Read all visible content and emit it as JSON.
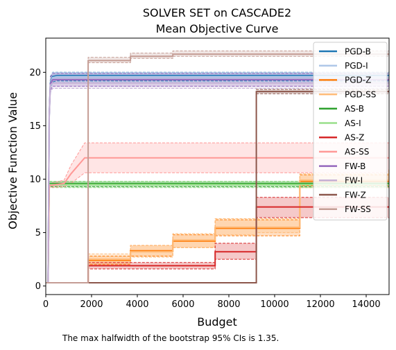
{
  "chart_data": {
    "type": "line",
    "title": "SOLVER SET on CASCADE2",
    "subtitle": "Mean Objective Curve",
    "xlabel": "Budget",
    "ylabel": "Objective Function Value",
    "xlim": [
      0,
      15000
    ],
    "ylim": [
      -0.8,
      23.2
    ],
    "xticks": [
      0,
      2000,
      4000,
      6000,
      8000,
      10000,
      12000,
      14000
    ],
    "yticks": [
      0,
      5,
      10,
      15,
      20
    ],
    "grid": false,
    "legend_position": "top-right",
    "footnote": "The max halfwidth of the bootstrap 95% CIs is 1.35.",
    "series": [
      {
        "name": "PGD-B",
        "color": "#1f77b4",
        "step": false,
        "x": [
          0,
          100,
          150,
          200,
          300,
          500,
          800,
          1500,
          15000
        ],
        "y": [
          0.3,
          0.3,
          16.0,
          19.0,
          19.6,
          19.7,
          19.7,
          19.7,
          19.7
        ],
        "lower": [
          0.3,
          0.3,
          15.3,
          18.5,
          19.1,
          19.2,
          19.2,
          19.2,
          19.2
        ],
        "upper": [
          0.3,
          0.3,
          16.7,
          19.6,
          20.0,
          20.0,
          20.0,
          20.0,
          20.0
        ]
      },
      {
        "name": "PGD-I",
        "color": "#aec7e8",
        "step": false,
        "x": [
          0,
          100,
          150,
          200,
          300,
          500,
          800,
          1500,
          15000
        ],
        "y": [
          0.3,
          0.3,
          15.8,
          18.9,
          19.5,
          19.6,
          19.6,
          19.6,
          19.6
        ],
        "lower": [
          0.3,
          0.3,
          15.1,
          18.4,
          19.0,
          19.1,
          19.1,
          19.1,
          19.1
        ],
        "upper": [
          0.3,
          0.3,
          16.5,
          19.5,
          20.0,
          20.0,
          20.0,
          20.0,
          20.0
        ]
      },
      {
        "name": "PGD-Z",
        "color": "#ff7f0e",
        "step": true,
        "x": [
          0,
          1850,
          3700,
          5550,
          7400,
          9200,
          11100,
          15000
        ],
        "y": [
          0.3,
          2.4,
          3.3,
          4.2,
          5.4,
          5.4,
          9.8,
          9.8
        ],
        "lower": [
          0.3,
          2.0,
          2.8,
          3.6,
          4.7,
          4.7,
          9.4,
          9.4
        ],
        "upper": [
          0.3,
          2.8,
          3.8,
          4.8,
          6.2,
          6.2,
          10.4,
          10.4
        ]
      },
      {
        "name": "PGD-SS",
        "color": "#ffbb78",
        "step": true,
        "x": [
          0,
          1850,
          3700,
          5550,
          7400,
          9200,
          11100,
          15000
        ],
        "y": [
          0.3,
          2.5,
          3.2,
          4.3,
          5.5,
          5.5,
          9.9,
          10.9
        ],
        "lower": [
          0.3,
          2.1,
          2.7,
          3.6,
          4.8,
          5.0,
          9.2,
          10.4
        ],
        "upper": [
          0.3,
          3.0,
          3.8,
          4.9,
          6.3,
          6.3,
          10.5,
          11.9
        ]
      },
      {
        "name": "AS-B",
        "color": "#2ca02c",
        "step": false,
        "x": [
          0,
          100,
          150,
          15000
        ],
        "y": [
          0.3,
          0.3,
          9.6,
          9.6
        ],
        "lower": [
          0.3,
          0.3,
          9.3,
          9.3
        ],
        "upper": [
          0.3,
          0.3,
          9.8,
          9.8
        ]
      },
      {
        "name": "AS-I",
        "color": "#98df8a",
        "step": false,
        "x": [
          0,
          100,
          150,
          15000
        ],
        "y": [
          0.3,
          0.3,
          9.5,
          9.5
        ],
        "lower": [
          0.3,
          0.3,
          9.2,
          9.2
        ],
        "upper": [
          0.3,
          0.3,
          9.8,
          9.8
        ]
      },
      {
        "name": "AS-Z",
        "color": "#d62728",
        "step": true,
        "x": [
          0,
          1850,
          3700,
          5550,
          7400,
          9200,
          15000
        ],
        "y": [
          0.3,
          1.9,
          1.9,
          1.9,
          3.2,
          7.4,
          7.4
        ],
        "lower": [
          0.3,
          1.6,
          1.6,
          1.6,
          2.5,
          6.4,
          6.4
        ],
        "upper": [
          0.3,
          2.2,
          2.2,
          2.2,
          4.0,
          8.3,
          8.3
        ]
      },
      {
        "name": "AS-SS",
        "color": "#ff9896",
        "step": false,
        "x": [
          0,
          100,
          150,
          800,
          1100,
          1700,
          15000
        ],
        "y": [
          0.3,
          0.3,
          9.4,
          9.6,
          10.5,
          12.0,
          12.0
        ],
        "lower": [
          0.3,
          0.3,
          9.2,
          9.3,
          9.6,
          10.6,
          10.6
        ],
        "upper": [
          0.3,
          0.3,
          9.6,
          9.9,
          11.3,
          13.4,
          13.4
        ]
      },
      {
        "name": "FW-B",
        "color": "#9467bd",
        "step": false,
        "x": [
          0,
          100,
          150,
          200,
          300,
          15000
        ],
        "y": [
          0.3,
          0.3,
          16.0,
          18.9,
          19.3,
          19.3
        ],
        "lower": [
          0.3,
          0.3,
          15.3,
          18.3,
          18.7,
          18.7
        ],
        "upper": [
          0.3,
          0.3,
          16.7,
          19.5,
          19.9,
          19.9
        ]
      },
      {
        "name": "FW-I",
        "color": "#c5b0d5",
        "step": false,
        "x": [
          0,
          100,
          150,
          200,
          300,
          15000
        ],
        "y": [
          0.3,
          0.3,
          15.8,
          18.8,
          19.0,
          19.0
        ],
        "lower": [
          0.3,
          0.3,
          15.0,
          18.1,
          18.5,
          18.5
        ],
        "upper": [
          0.3,
          0.3,
          16.6,
          19.4,
          19.6,
          19.6
        ]
      },
      {
        "name": "FW-Z",
        "color": "#8c564b",
        "step": true,
        "x": [
          0,
          9200,
          15000
        ],
        "y": [
          0.3,
          18.2,
          18.2
        ],
        "lower": [
          0.3,
          18.0,
          18.0
        ],
        "upper": [
          0.3,
          18.4,
          18.4
        ]
      },
      {
        "name": "FW-SS",
        "color": "#c49c94",
        "step": true,
        "x": [
          0,
          1850,
          3700,
          5550,
          15000
        ],
        "y": [
          0.3,
          21.1,
          21.5,
          21.7,
          21.7
        ],
        "lower": [
          0.3,
          20.9,
          21.3,
          21.5,
          21.5
        ],
        "upper": [
          0.3,
          21.4,
          21.8,
          22.0,
          22.0
        ]
      }
    ]
  }
}
